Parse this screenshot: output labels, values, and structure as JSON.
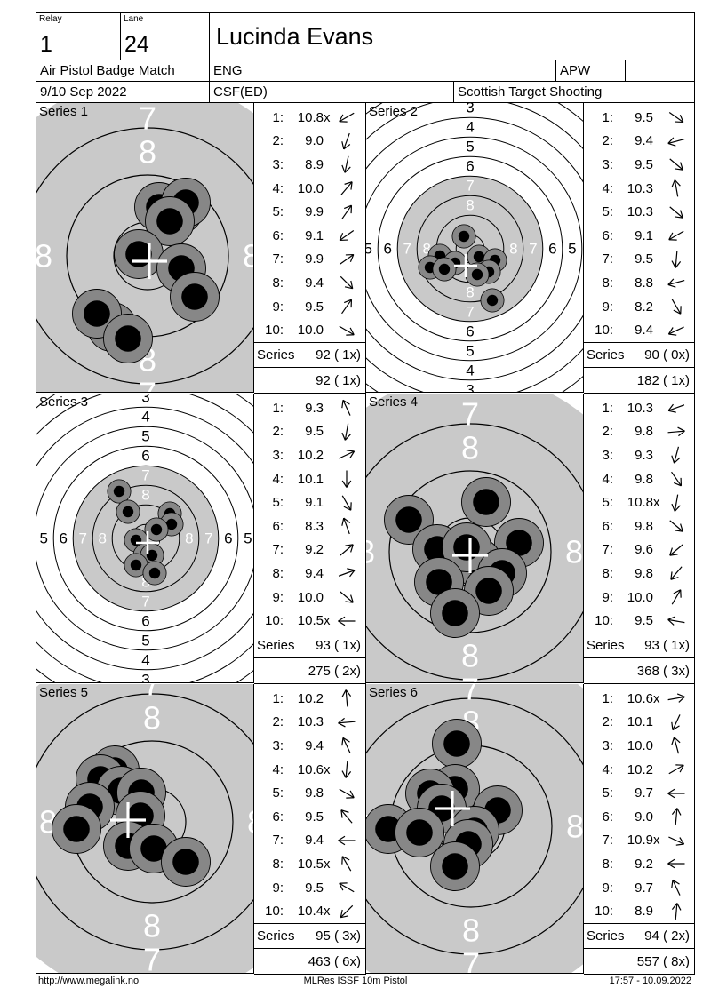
{
  "header": {
    "relay_label": "Relay",
    "relay_value": "1",
    "lane_label": "Lane",
    "lane_value": "24",
    "shooter_name": "Lucinda Evans",
    "match_name": "Air Pistol Badge Match",
    "country": "ENG",
    "class": "APW",
    "date": "9/10 Sep 2022",
    "club": "CSF(ED)",
    "organisation": "Scottish Target Shooting"
  },
  "footer": {
    "left": "http://www.megalink.no",
    "center": "MLRes ISSF 10m Pistol",
    "right": "17:57 - 10.09.2022"
  },
  "colors": {
    "target_gray": "#c9c9c9",
    "hole_gray": "#878787",
    "hole_core": "#000000",
    "ring_line": "#000000",
    "cross": "#ffffff",
    "white_digit": "#ffffff",
    "black_digit": "#000000"
  },
  "target_style": {
    "zoomed": {
      "gray_r": 200,
      "rings": [
        38,
        91,
        144
      ],
      "ring_w": 1.2,
      "digit_font": 36,
      "digits": [
        {
          "t": "8",
          "r": 117,
          "ang": [
            90,
            180,
            0,
            270
          ],
          "c": "#ffffff"
        },
        {
          "t": "7",
          "r": 155,
          "ang": [
            90,
            270
          ],
          "c": "#ffffff"
        }
      ],
      "hole_r": 27.5,
      "core_r": 14.8,
      "hole_w": 0.9,
      "cross_arm": 20,
      "cross_w": 3.2
    },
    "full": {
      "gray_r": 81.8,
      "rings": [
        15.8,
        37.8,
        59.8,
        81.8,
        103.8,
        125.8,
        147.8,
        169.8,
        191.8,
        213.8
      ],
      "ring_w": 1,
      "digit_font": 17,
      "digits": [
        {
          "t": "8",
          "r": 48.8,
          "ang": [
            90,
            270,
            180,
            0
          ],
          "c": "#ffffff"
        },
        {
          "t": "7",
          "r": 70.8,
          "ang": [
            90,
            270,
            180,
            0
          ],
          "c": "#ffffff"
        },
        {
          "t": "6",
          "r": 92.8,
          "ang": [
            90,
            270,
            180,
            0
          ],
          "c": "#000000"
        },
        {
          "t": "5",
          "r": 114.8,
          "ang": [
            90,
            270,
            180,
            0
          ],
          "c": "#000000"
        },
        {
          "t": "4",
          "r": 136.8,
          "ang": [
            90,
            270
          ],
          "c": "#000000"
        },
        {
          "t": "3",
          "r": 158.8,
          "ang": [
            90,
            270
          ],
          "c": "#000000"
        }
      ],
      "hole_r": 13.1,
      "core_r": 6.2,
      "hole_w": 0.8,
      "cross_arm": 13,
      "cross_w": 2.5
    }
  },
  "series_row_label": "Series",
  "series": [
    {
      "label": "Series 1",
      "shots": [
        {
          "n": "1:",
          "v": "10.8",
          "x": "x",
          "dir": 210
        },
        {
          "n": "2:",
          "v": "9.0",
          "x": "",
          "dir": 250
        },
        {
          "n": "3:",
          "v": "8.9",
          "x": "",
          "dir": 258
        },
        {
          "n": "4:",
          "v": "10.0",
          "x": "",
          "dir": 50
        },
        {
          "n": "5:",
          "v": "9.9",
          "x": "",
          "dir": 55
        },
        {
          "n": "6:",
          "v": "9.1",
          "x": "",
          "dir": 215
        },
        {
          "n": "7:",
          "v": "9.9",
          "x": "",
          "dir": 35
        },
        {
          "n": "8:",
          "v": "9.4",
          "x": "",
          "dir": 315
        },
        {
          "n": "9:",
          "v": "9.5",
          "x": "",
          "dir": 55
        },
        {
          "n": "10:",
          "v": "10.0",
          "x": "",
          "dir": 330
        }
      ],
      "series_total": "92 ( 1x)",
      "running_total": "92 ( 1x)",
      "target": {
        "view": "zoomed",
        "center": [
          125,
          172
        ],
        "cross": [
          127,
          178
        ],
        "holes": [
          [
            160,
            120
          ],
          [
            138,
            117
          ],
          [
            168,
            112
          ],
          [
            150,
            133
          ],
          [
            115,
            170
          ],
          [
            163,
            186
          ],
          [
            178,
            218
          ],
          [
            85,
            252
          ],
          [
            68,
            237
          ],
          [
            103,
            265
          ]
        ]
      }
    },
    {
      "label": "Series 2",
      "shots": [
        {
          "n": "1:",
          "v": "9.5",
          "x": "",
          "dir": 325
        },
        {
          "n": "2:",
          "v": "9.4",
          "x": "",
          "dir": 195
        },
        {
          "n": "3:",
          "v": "9.5",
          "x": "",
          "dir": 320
        },
        {
          "n": "4:",
          "v": "10.3",
          "x": "",
          "dir": 100
        },
        {
          "n": "5:",
          "v": "10.3",
          "x": "",
          "dir": 320
        },
        {
          "n": "6:",
          "v": "9.1",
          "x": "",
          "dir": 210
        },
        {
          "n": "7:",
          "v": "9.5",
          "x": "",
          "dir": 265
        },
        {
          "n": "8:",
          "v": "8.8",
          "x": "",
          "dir": 195
        },
        {
          "n": "9:",
          "v": "8.2",
          "x": "",
          "dir": 300
        },
        {
          "n": "10:",
          "v": "9.4",
          "x": "",
          "dir": 205
        }
      ],
      "series_total": "90 ( 0x)",
      "running_total": "182 ( 1x)",
      "target": {
        "view": "full",
        "center": [
          117,
          164
        ],
        "cross": [
          112,
          183
        ],
        "holes": [
          [
            110,
            150
          ],
          [
            83,
            172
          ],
          [
            100,
            180
          ],
          [
            127,
            173
          ],
          [
            145,
            177
          ],
          [
            72,
            185
          ],
          [
            88,
            187
          ],
          [
            138,
            190
          ],
          [
            125,
            193
          ],
          [
            142,
            222
          ]
        ]
      }
    },
    {
      "label": "Series 3",
      "shots": [
        {
          "n": "1:",
          "v": "9.3",
          "x": "",
          "dir": 115
        },
        {
          "n": "2:",
          "v": "9.5",
          "x": "",
          "dir": 260
        },
        {
          "n": "3:",
          "v": "10.2",
          "x": "",
          "dir": 25
        },
        {
          "n": "4:",
          "v": "10.1",
          "x": "",
          "dir": 270
        },
        {
          "n": "5:",
          "v": "9.1",
          "x": "",
          "dir": 300
        },
        {
          "n": "6:",
          "v": "8.3",
          "x": "",
          "dir": 110
        },
        {
          "n": "7:",
          "v": "9.2",
          "x": "",
          "dir": 40
        },
        {
          "n": "8:",
          "v": "9.4",
          "x": "",
          "dir": 20
        },
        {
          "n": "9:",
          "v": "10.0",
          "x": "",
          "dir": 320
        },
        {
          "n": "10:",
          "v": "10.5",
          "x": "x",
          "dir": 180
        }
      ],
      "series_total": "93 ( 1x)",
      "running_total": "275 ( 2x)",
      "target": {
        "view": "full",
        "center": [
          123,
          163
        ],
        "cross": [
          125,
          168
        ],
        "holes": [
          [
            93,
            110
          ],
          [
            103,
            133
          ],
          [
            150,
            135
          ],
          [
            152,
            147
          ],
          [
            135,
            153
          ],
          [
            112,
            165
          ],
          [
            122,
            182
          ],
          [
            130,
            182
          ],
          [
            112,
            193
          ],
          [
            133,
            202
          ]
        ]
      }
    },
    {
      "label": "Series 4",
      "shots": [
        {
          "n": "1:",
          "v": "10.3",
          "x": "",
          "dir": 200
        },
        {
          "n": "2:",
          "v": "9.8",
          "x": "",
          "dir": 5
        },
        {
          "n": "3:",
          "v": "9.3",
          "x": "",
          "dir": 255
        },
        {
          "n": "4:",
          "v": "9.8",
          "x": "",
          "dir": 305
        },
        {
          "n": "5:",
          "v": "10.8",
          "x": "x",
          "dir": 260
        },
        {
          "n": "6:",
          "v": "9.8",
          "x": "",
          "dir": 320
        },
        {
          "n": "7:",
          "v": "9.6",
          "x": "",
          "dir": 220
        },
        {
          "n": "8:",
          "v": "9.8",
          "x": "",
          "dir": 230
        },
        {
          "n": "9:",
          "v": "10.0",
          "x": "",
          "dir": 60
        },
        {
          "n": "10:",
          "v": "9.5",
          "x": "",
          "dir": 170
        }
      ],
      "series_total": "93 ( 1x)",
      "running_total": "368 ( 3x)",
      "target": {
        "view": "zoomed",
        "center": [
          117,
          178
        ],
        "cross": [
          117,
          182
        ],
        "holes": [
          [
            135,
            122
          ],
          [
            48,
            142
          ],
          [
            172,
            168
          ],
          [
            80,
            175
          ],
          [
            125,
            190
          ],
          [
            113,
            173
          ],
          [
            82,
            212
          ],
          [
            153,
            202
          ],
          [
            138,
            222
          ],
          [
            100,
            247
          ]
        ]
      }
    },
    {
      "label": "Series 5",
      "shots": [
        {
          "n": "1:",
          "v": "10.2",
          "x": "",
          "dir": 95
        },
        {
          "n": "2:",
          "v": "10.3",
          "x": "",
          "dir": 185
        },
        {
          "n": "3:",
          "v": "9.4",
          "x": "",
          "dir": 115
        },
        {
          "n": "4:",
          "v": "10.6",
          "x": "x",
          "dir": 265
        },
        {
          "n": "5:",
          "v": "9.8",
          "x": "",
          "dir": 330
        },
        {
          "n": "6:",
          "v": "9.5",
          "x": "",
          "dir": 130
        },
        {
          "n": "7:",
          "v": "9.4",
          "x": "",
          "dir": 180
        },
        {
          "n": "8:",
          "v": "10.5",
          "x": "x",
          "dir": 120
        },
        {
          "n": "9:",
          "v": "9.5",
          "x": "",
          "dir": 150
        },
        {
          "n": "10:",
          "v": "10.4",
          "x": "x",
          "dir": 225
        }
      ],
      "series_total": "95 ( 3x)",
      "running_total": "463 ( 6x)",
      "target": {
        "view": "zoomed",
        "center": [
          130,
          155
        ],
        "cross": [
          103,
          153
        ],
        "holes": [
          [
            88,
            97
          ],
          [
            72,
            107
          ],
          [
            95,
            120
          ],
          [
            118,
            122
          ],
          [
            60,
            138
          ],
          [
            117,
            148
          ],
          [
            45,
            163
          ],
          [
            103,
            182
          ],
          [
            132,
            185
          ],
          [
            168,
            200
          ]
        ]
      }
    },
    {
      "label": "Series 6",
      "shots": [
        {
          "n": "1:",
          "v": "10.6",
          "x": "x",
          "dir": 10
        },
        {
          "n": "2:",
          "v": "10.1",
          "x": "",
          "dir": 245
        },
        {
          "n": "3:",
          "v": "10.0",
          "x": "",
          "dir": 105
        },
        {
          "n": "4:",
          "v": "10.2",
          "x": "",
          "dir": 30
        },
        {
          "n": "5:",
          "v": "9.7",
          "x": "",
          "dir": 180
        },
        {
          "n": "6:",
          "v": "9.0",
          "x": "",
          "dir": 85
        },
        {
          "n": "7:",
          "v": "10.9",
          "x": "x",
          "dir": 335
        },
        {
          "n": "8:",
          "v": "9.2",
          "x": "",
          "dir": 180
        },
        {
          "n": "9:",
          "v": "9.7",
          "x": "",
          "dir": 115
        },
        {
          "n": "10:",
          "v": "8.9",
          "x": "",
          "dir": 85
        }
      ],
      "series_total": "94 ( 2x)",
      "running_total": "557 ( 8x)",
      "target": {
        "view": "zoomed",
        "center": [
          118,
          160
        ],
        "cross": [
          97,
          140
        ],
        "holes": [
          [
            102,
            67
          ],
          [
            100,
            118
          ],
          [
            72,
            123
          ],
          [
            85,
            140
          ],
          [
            148,
            142
          ],
          [
            25,
            163
          ],
          [
            60,
            167
          ],
          [
            122,
            165
          ],
          [
            115,
            180
          ],
          [
            100,
            205
          ]
        ]
      }
    }
  ]
}
